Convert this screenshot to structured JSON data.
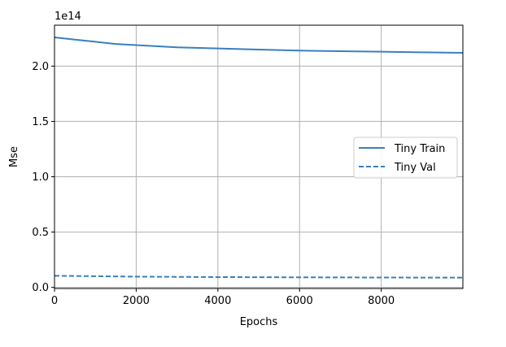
{
  "chart_data": {
    "type": "line",
    "title": "",
    "xlabel": "Epochs",
    "ylabel": "Mse",
    "y_offset_label": "1e14",
    "xlim": [
      0,
      9999
    ],
    "ylim": [
      -0.01,
      2.37
    ],
    "x_ticks": [
      0,
      2000,
      4000,
      6000,
      8000
    ],
    "x_tick_labels": [
      "0",
      "2000",
      "4000",
      "6000",
      "8000"
    ],
    "y_ticks": [
      0.0,
      0.5,
      1.0,
      1.5,
      2.0
    ],
    "y_tick_labels": [
      "0.0",
      "0.5",
      "1.0",
      "1.5",
      "2.0"
    ],
    "grid": true,
    "legend_placement": "center-right",
    "series": [
      {
        "name": "Tiny Train",
        "style": "solid",
        "color": "#3a7fbf",
        "x": [
          0,
          500,
          1000,
          1500,
          2000,
          2500,
          3000,
          4000,
          5000,
          6000,
          7000,
          8000,
          9000,
          9999
        ],
        "y": [
          2.26,
          2.24,
          2.22,
          2.2,
          2.19,
          2.18,
          2.17,
          2.16,
          2.15,
          2.14,
          2.135,
          2.13,
          2.125,
          2.12
        ]
      },
      {
        "name": "Tiny Val",
        "style": "dashed",
        "color": "#3a7fbf",
        "x": [
          0,
          2000,
          4000,
          6000,
          8000,
          9999
        ],
        "y": [
          0.105,
          0.097,
          0.093,
          0.091,
          0.089,
          0.088
        ]
      }
    ]
  }
}
